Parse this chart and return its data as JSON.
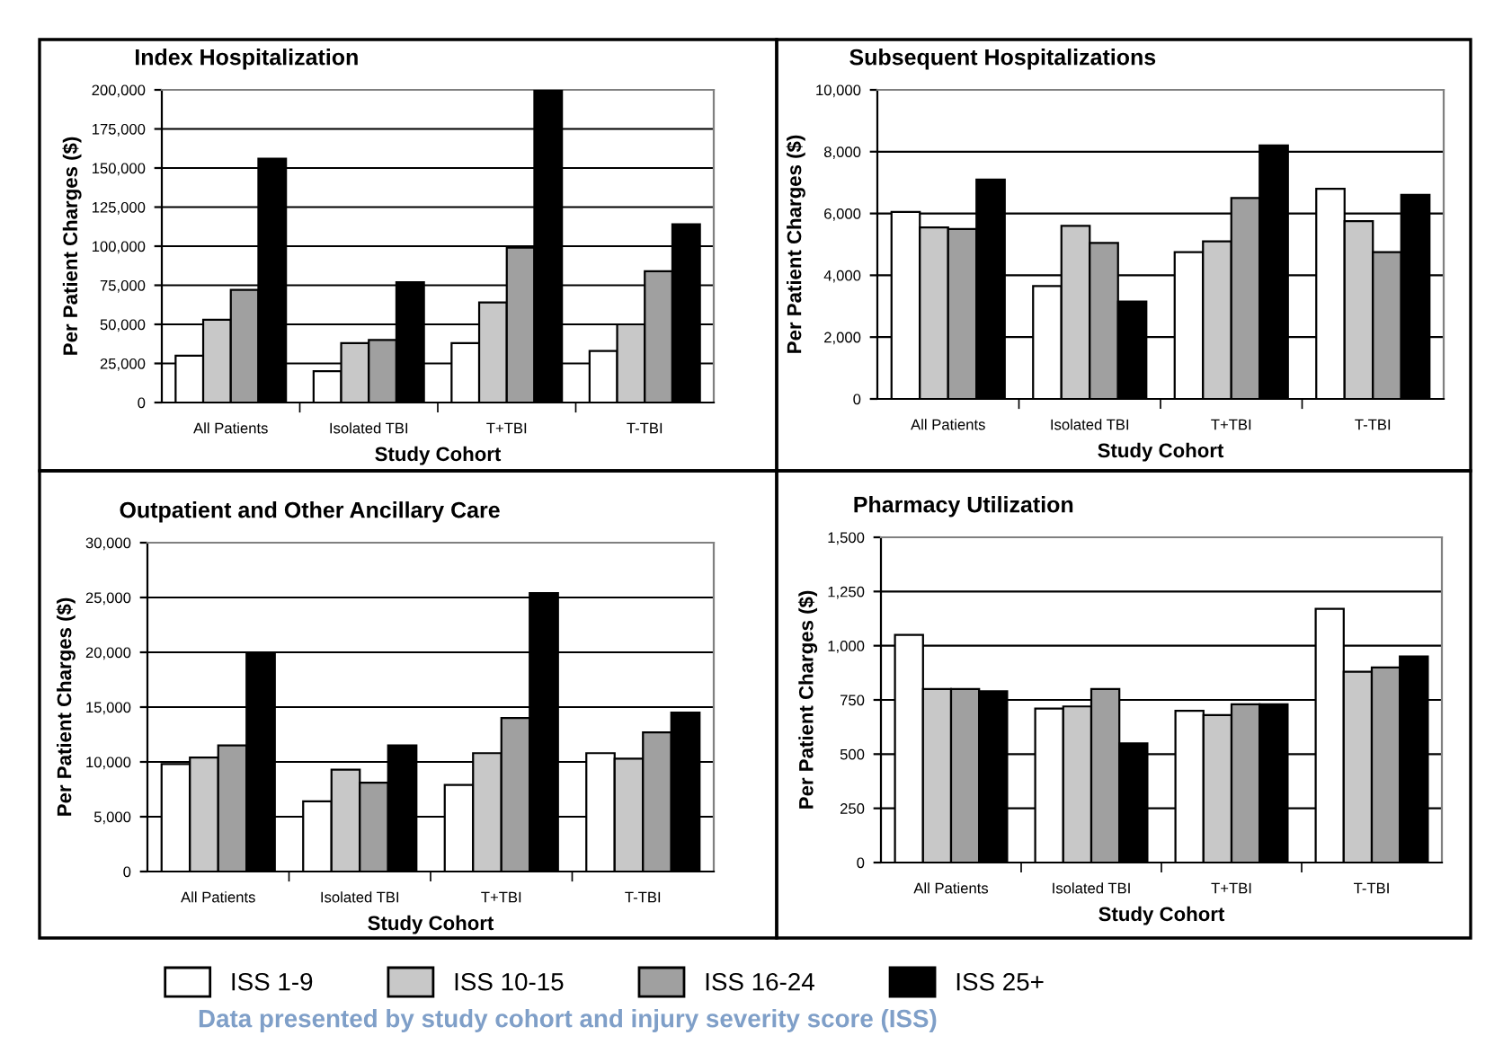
{
  "chart_data": [
    {
      "type": "bar",
      "title": "Index Hospitalization",
      "xlabel": "Study Cohort",
      "ylabel": "Per Patient Charges ($)",
      "categories": [
        "All Patients",
        "Isolated TBI",
        "T+TBI",
        "T-TBI"
      ],
      "ylim": [
        0,
        200000
      ],
      "yticks": [
        0,
        {
          "value": 25000,
          "label": "25,000"
        },
        {
          "value": 50000,
          "label": "50,000"
        },
        {
          "value": 75000,
          "label": "75,000"
        },
        {
          "value": 100000,
          "label": "100,000"
        },
        {
          "value": 125000,
          "label": "125,000"
        },
        {
          "value": 150000,
          "label": "150,000"
        },
        {
          "value": 175000,
          "label": "175,000"
        },
        {
          "value": 200000,
          "label": "200,000"
        }
      ],
      "grid": "y",
      "series": [
        {
          "color": "#ffffff",
          "values": [
            30000,
            20000,
            38000,
            33000
          ]
        },
        {
          "color": "#c8c8c8",
          "values": [
            53000,
            38000,
            64000,
            50000
          ]
        },
        {
          "color": "#a0a0a0",
          "values": [
            72000,
            40000,
            99000,
            84000
          ]
        },
        {
          "color": "#000000",
          "values": [
            156000,
            77000,
            200000,
            114000
          ]
        }
      ]
    },
    {
      "type": "bar",
      "title": "Subsequent Hospitalizations",
      "xlabel": "Study Cohort",
      "ylabel": "Per Patient Charges ($)",
      "categories": [
        "All Patients",
        "Isolated TBI",
        "T+TBI",
        "T-TBI"
      ],
      "ylim": [
        0,
        10000
      ],
      "yticks": [
        0,
        {
          "value": 2000,
          "label": "2,000"
        },
        {
          "value": 4000,
          "label": "4,000"
        },
        {
          "value": 6000,
          "label": "6,000"
        },
        {
          "value": 8000,
          "label": "8,000"
        },
        {
          "value": 10000,
          "label": "10,000"
        }
      ],
      "grid": "y",
      "series": [
        {
          "color": "#ffffff",
          "values": [
            6050,
            3650,
            4750,
            6800
          ]
        },
        {
          "color": "#c8c8c8",
          "values": [
            5550,
            5600,
            5100,
            5750
          ]
        },
        {
          "color": "#a0a0a0",
          "values": [
            5500,
            5050,
            6500,
            4750
          ]
        },
        {
          "color": "#000000",
          "values": [
            7100,
            3150,
            8200,
            6600
          ]
        }
      ]
    },
    {
      "type": "bar",
      "title": "Outpatient and Other Ancillary Care",
      "xlabel": "Study Cohort",
      "ylabel": "Per Patient Charges ($)",
      "categories": [
        "All Patients",
        "Isolated TBI",
        "T+TBI",
        "T-TBI"
      ],
      "ylim": [
        0,
        30000
      ],
      "yticks": [
        0,
        {
          "value": 5000,
          "label": "5,000"
        },
        {
          "value": 10000,
          "label": "10,000"
        },
        {
          "value": 15000,
          "label": "15,000"
        },
        {
          "value": 20000,
          "label": "20,000"
        },
        {
          "value": 25000,
          "label": "25,000"
        },
        {
          "value": 30000,
          "label": "30,000"
        }
      ],
      "grid": "y",
      "series": [
        {
          "color": "#ffffff",
          "values": [
            9800,
            6400,
            7900,
            10800
          ]
        },
        {
          "color": "#c8c8c8",
          "values": [
            10400,
            9300,
            10800,
            10300
          ]
        },
        {
          "color": "#a0a0a0",
          "values": [
            11500,
            8100,
            14000,
            12700
          ]
        },
        {
          "color": "#000000",
          "values": [
            20000,
            11500,
            25400,
            14500
          ]
        }
      ]
    },
    {
      "type": "bar",
      "title": "Pharmacy Utilization",
      "xlabel": "Study Cohort",
      "ylabel": "Per Patient Charges ($)",
      "categories": [
        "All Patients",
        "Isolated TBI",
        "T+TBI",
        "T-TBI"
      ],
      "ylim": [
        0,
        1500
      ],
      "yticks": [
        0,
        250,
        500,
        750,
        {
          "value": 1000,
          "label": "1,000"
        },
        {
          "value": 1250,
          "label": "1,250"
        },
        {
          "value": 1500,
          "label": "1,500"
        }
      ],
      "grid": "y",
      "legend": "bottom",
      "annotations": [
        "Data presented by study cohort and injury severity score (ISS)"
      ],
      "series": [
        {
          "name": "ISS 1-9",
          "color": "#ffffff",
          "values": [
            1050,
            710,
            700,
            1170
          ]
        },
        {
          "name": "ISS 10-15",
          "color": "#c8c8c8",
          "values": [
            800,
            720,
            680,
            880
          ]
        },
        {
          "name": "ISS 16-24",
          "color": "#a0a0a0",
          "values": [
            800,
            800,
            730,
            900
          ]
        },
        {
          "name": "ISS 25+",
          "color": "#000000",
          "values": [
            790,
            550,
            730,
            950
          ]
        }
      ]
    }
  ]
}
